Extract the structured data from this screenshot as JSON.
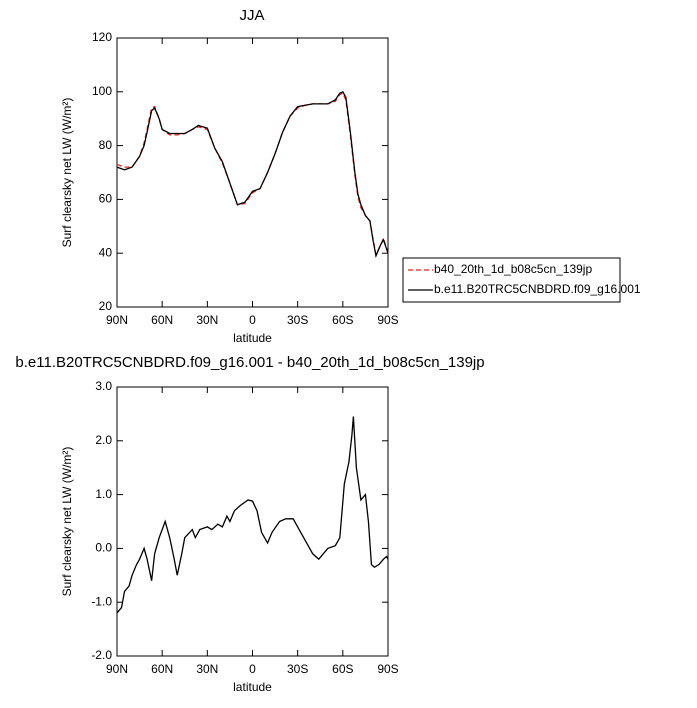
{
  "chart_data": [
    {
      "type": "line",
      "title": "JJA",
      "xlabel": "latitude",
      "ylabel": "Surf clearsky net LW (W/m²)",
      "legend": "right",
      "x": [
        90,
        85,
        80,
        75,
        72,
        70,
        67,
        65,
        62,
        60,
        55,
        50,
        45,
        40,
        36,
        30,
        25,
        20,
        15,
        10,
        5,
        0,
        -5,
        -10,
        -15,
        -20,
        -25,
        -30,
        -35,
        -40,
        -45,
        -50,
        -55,
        -58,
        -60,
        -62,
        -65,
        -68,
        -70,
        -72,
        -75,
        -78,
        -80,
        -82,
        -85,
        -87,
        -90
      ],
      "series": [
        {
          "name": "b40_20th_1d_b08c5cn_139jp",
          "color": "#e0201b",
          "linestyle": "dashed",
          "values": [
            73,
            72,
            72,
            76,
            81,
            86,
            94,
            94.5,
            90,
            86,
            84,
            84,
            84.5,
            86,
            87,
            86,
            79,
            73.5,
            66,
            58,
            58.5,
            62.5,
            64,
            70,
            77,
            85,
            91,
            94,
            95,
            95.5,
            95.5,
            95.5,
            96.5,
            99,
            99.5,
            97,
            84,
            69,
            61,
            57,
            54,
            52,
            45.5,
            39.5,
            43,
            45.5,
            40
          ]
        },
        {
          "name": "b.e11.B20TRC5CNBDRD.f09_g16.001",
          "color": "#000000",
          "linestyle": "solid",
          "values": [
            72,
            71,
            72,
            76,
            80,
            85,
            93,
            94,
            90,
            86,
            84.5,
            84.5,
            84.5,
            86,
            87.5,
            86.5,
            79,
            74,
            66,
            58,
            59,
            63,
            64,
            70,
            77,
            85,
            91,
            94.5,
            95,
            95.5,
            95.5,
            95.5,
            97,
            99.5,
            100,
            98,
            85,
            70,
            62,
            58,
            54,
            52,
            45,
            39,
            43,
            45,
            40
          ]
        }
      ],
      "xlim": [
        90,
        -90
      ],
      "xticks": [
        {
          "value": 90,
          "label": "90N"
        },
        {
          "value": 60,
          "label": "60N"
        },
        {
          "value": 30,
          "label": "30N"
        },
        0,
        {
          "value": -30,
          "label": "30S"
        },
        {
          "value": -60,
          "label": "60S"
        },
        {
          "value": -90,
          "label": "90S"
        }
      ],
      "ylim": [
        20,
        120
      ],
      "yticks": [
        20,
        40,
        60,
        80,
        100,
        120
      ]
    },
    {
      "type": "line",
      "title": "b.e11.B20TRC5CNBDRD.f09_g16.001 - b40_20th_1d_b08c5cn_139jp",
      "xlabel": "latitude",
      "ylabel": "Surf clearsky net LW (W/m²)",
      "x": [
        90,
        87,
        85,
        82,
        80,
        77,
        75,
        72,
        70,
        67,
        65,
        62,
        58,
        55,
        52,
        50,
        47,
        45,
        40,
        38,
        35,
        30,
        27,
        23,
        20,
        17,
        15,
        12,
        8,
        3,
        0,
        -3,
        -6,
        -10,
        -13,
        -18,
        -22,
        -27,
        -32,
        -36,
        -40,
        -44,
        -50,
        -55,
        -58,
        -61,
        -64,
        -66,
        -67,
        -69,
        -72,
        -75,
        -77,
        -79,
        -81,
        -84,
        -87,
        -89,
        -90
      ],
      "series": [
        {
          "color": "#000000",
          "linestyle": "solid",
          "values": [
            -1.2,
            -1.1,
            -0.8,
            -0.7,
            -0.5,
            -0.3,
            -0.2,
            0,
            -0.2,
            -0.6,
            -0.1,
            0.2,
            0.5,
            0.2,
            -0.2,
            -0.5,
            -0.1,
            0.2,
            0.35,
            0.2,
            0.35,
            0.4,
            0.35,
            0.45,
            0.4,
            0.6,
            0.5,
            0.7,
            0.8,
            0.9,
            0.88,
            0.7,
            0.3,
            0.1,
            0.3,
            0.5,
            0.55,
            0.55,
            0.3,
            0.1,
            -0.1,
            -0.2,
            0,
            0.05,
            0.2,
            1.2,
            1.6,
            2.1,
            2.45,
            1.5,
            0.9,
            1.0,
            0.5,
            -0.3,
            -0.35,
            -0.3,
            -0.2,
            -0.15,
            -0.2
          ]
        }
      ],
      "xlim": [
        90,
        -90
      ],
      "xticks": [
        {
          "value": 90,
          "label": "90N"
        },
        {
          "value": 60,
          "label": "60N"
        },
        {
          "value": 30,
          "label": "30N"
        },
        0,
        {
          "value": -30,
          "label": "30S"
        },
        {
          "value": -60,
          "label": "60S"
        },
        {
          "value": -90,
          "label": "90S"
        }
      ],
      "ylim": [
        -2,
        3
      ],
      "yticks": [
        {
          "value": -2,
          "label": "-2.0"
        },
        {
          "value": -1,
          "label": "-1.0"
        },
        {
          "value": 0,
          "label": "0.0"
        },
        {
          "value": 1,
          "label": "1.0"
        },
        {
          "value": 2,
          "label": "2.0"
        },
        {
          "value": 3,
          "label": "3.0"
        }
      ]
    }
  ]
}
